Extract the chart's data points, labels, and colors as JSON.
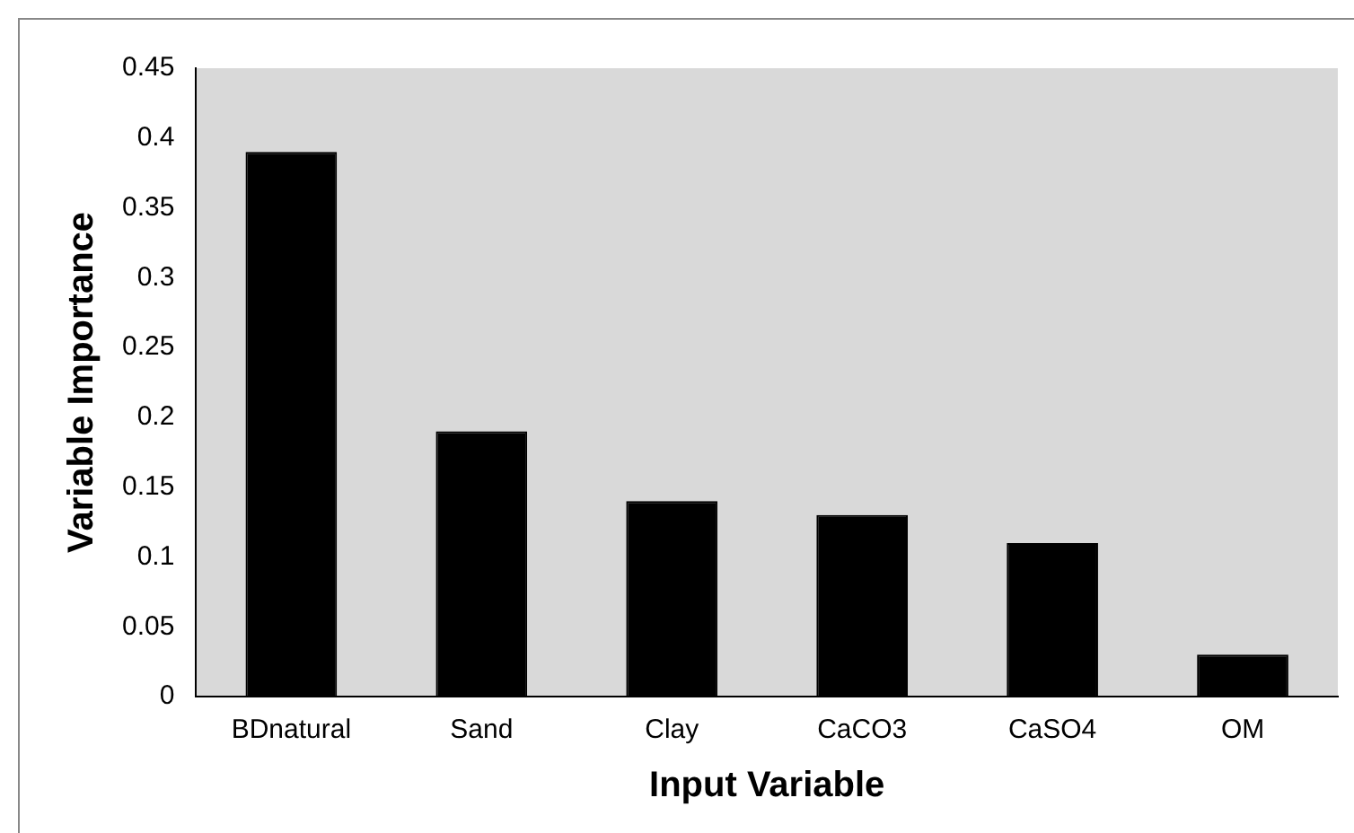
{
  "chart_data": {
    "type": "bar",
    "xlabel": "Input Variable",
    "ylabel": "Variable Importance",
    "categories": [
      "BDnatural",
      "Sand",
      "Clay",
      "CaCO3",
      "CaSO4",
      "OM"
    ],
    "values": [
      0.39,
      0.19,
      0.14,
      0.13,
      0.11,
      0.03
    ],
    "color": "#000000",
    "ylim": [
      0,
      0.45
    ],
    "yticks": [
      0,
      0.05,
      0.1,
      0.15,
      0.2,
      0.25,
      0.3,
      0.35,
      0.4,
      0.45
    ],
    "grid": false,
    "legend": false
  }
}
